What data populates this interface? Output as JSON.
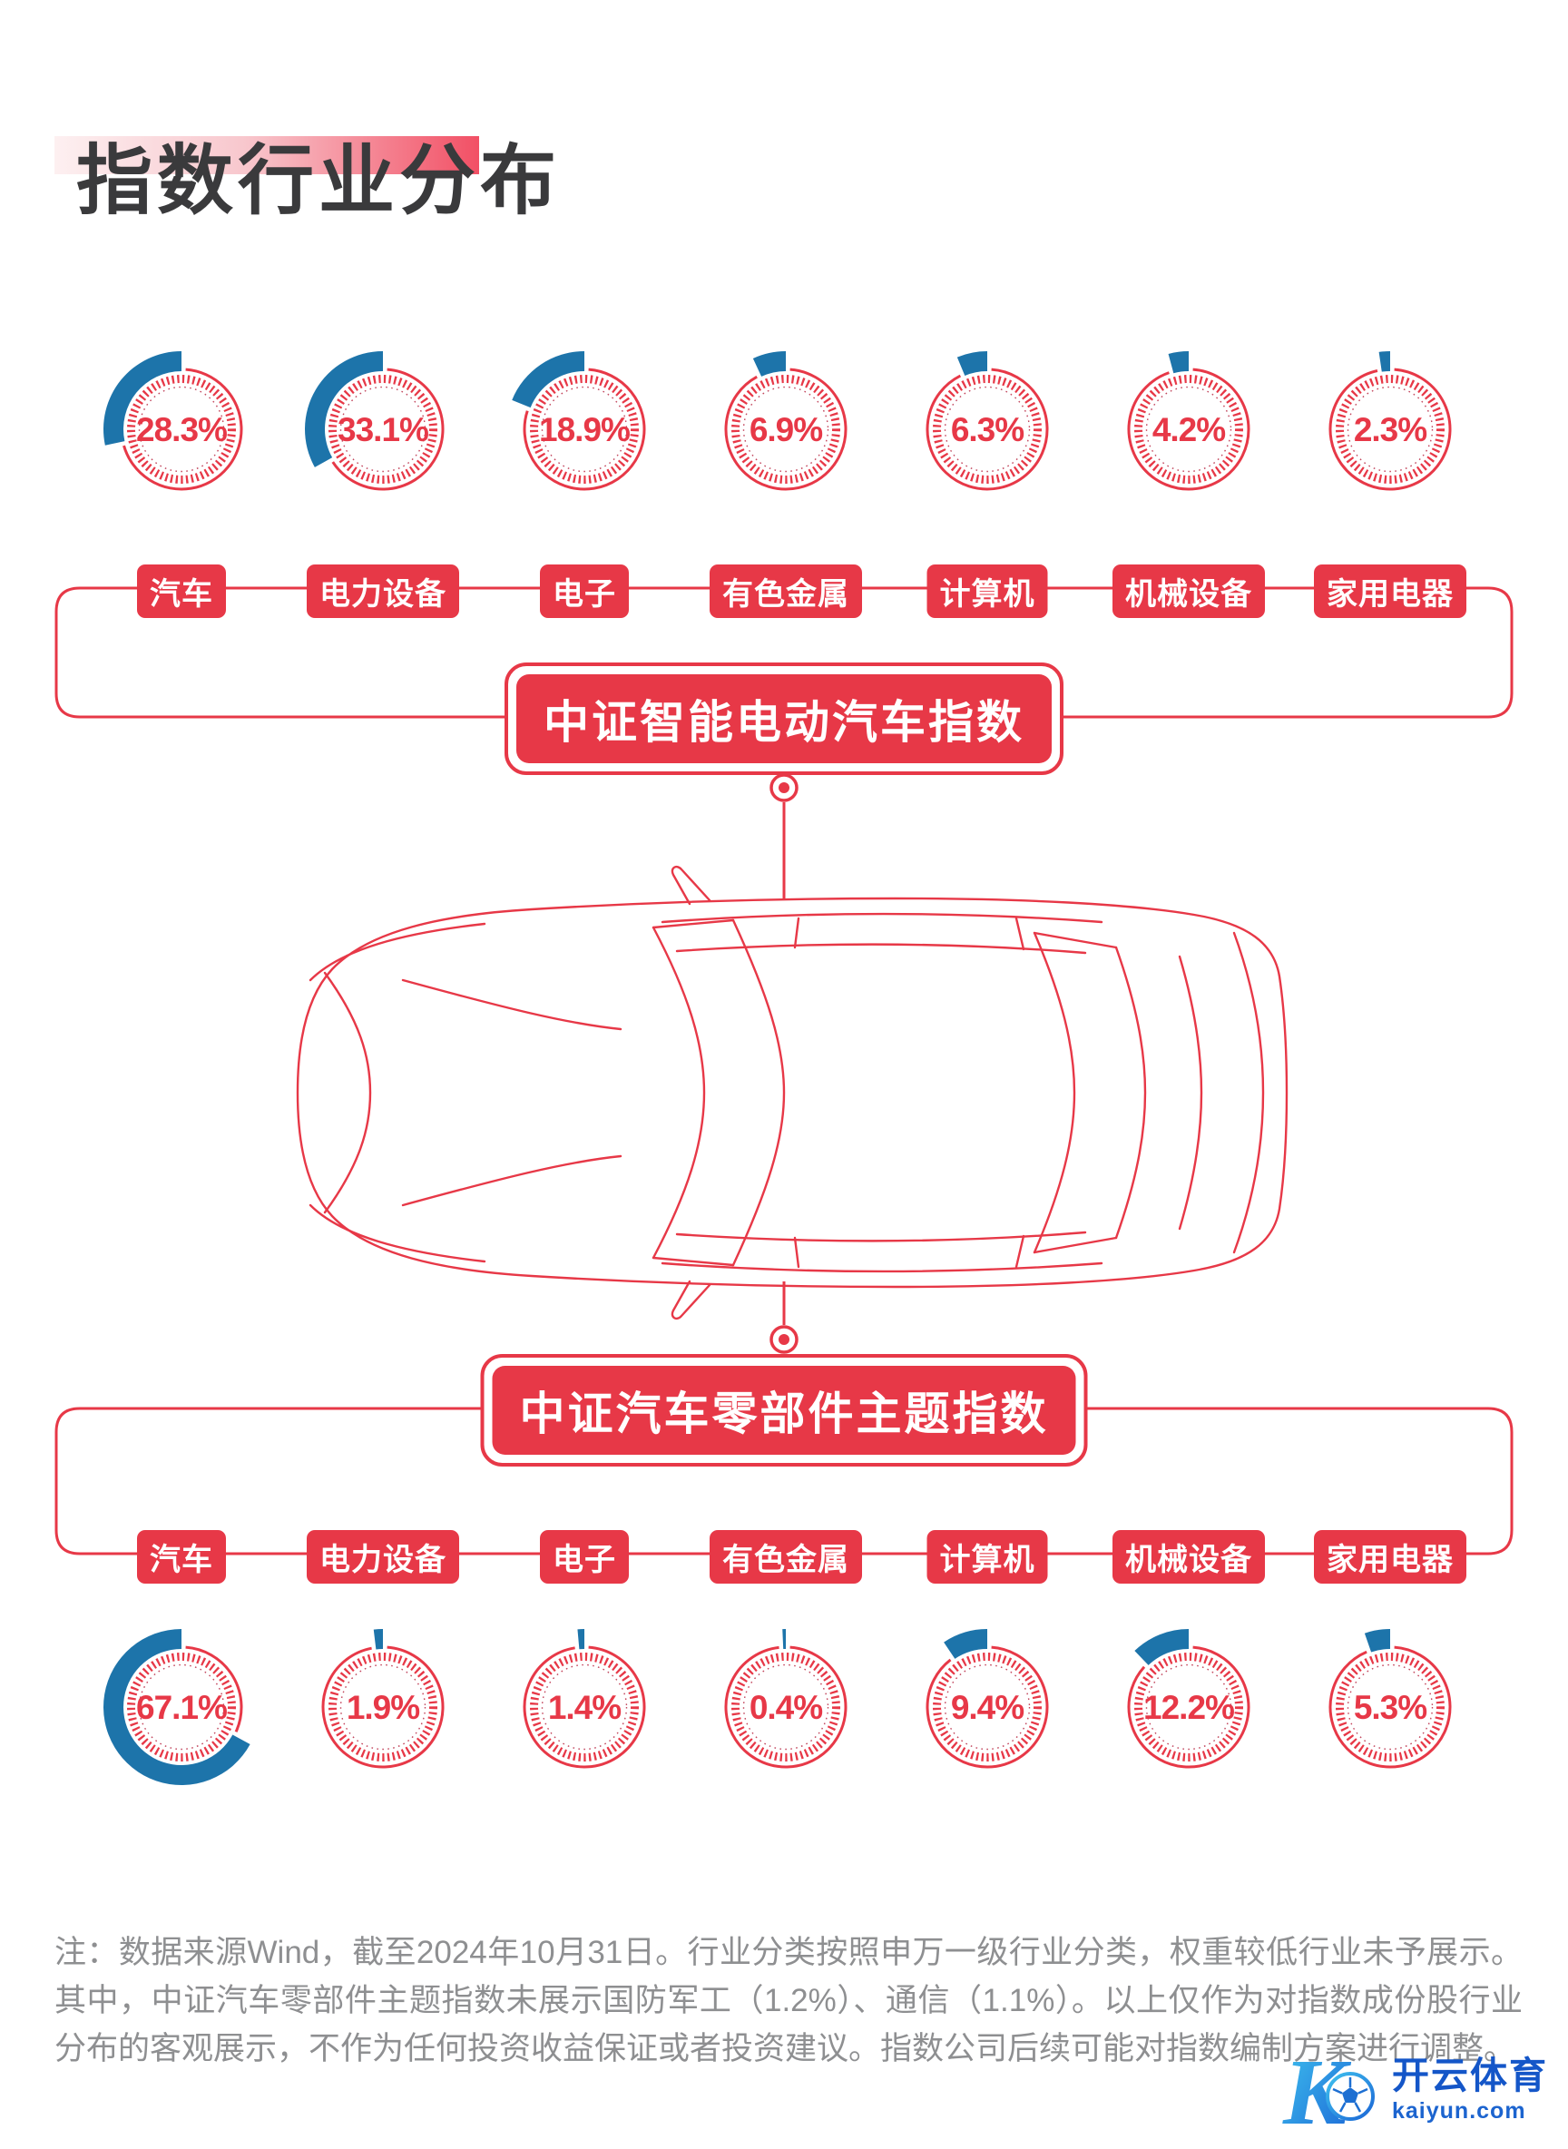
{
  "title": "指数行业分布",
  "chart_data": [
    {
      "type": "pie",
      "title": "中证智能电动汽车指数",
      "unit": "%",
      "categories": [
        "汽车",
        "电力设备",
        "电子",
        "有色金属",
        "计算机",
        "机械设备",
        "家用电器"
      ],
      "values": [
        28.3,
        33.1,
        18.9,
        6.9,
        6.3,
        4.2,
        2.3
      ],
      "labels": [
        "28.3%",
        "33.1%",
        "18.9%",
        "6.9%",
        "6.3%",
        "4.2%",
        "2.3%"
      ],
      "layout_hint": "row of 7 ring gauges; blue arc = weight share, sweeping counterclockwise from 12 o'clock; value shown in center"
    },
    {
      "type": "pie",
      "title": "中证汽车零部件主题指数",
      "unit": "%",
      "categories": [
        "汽车",
        "电力设备",
        "电子",
        "有色金属",
        "计算机",
        "机械设备",
        "家用电器"
      ],
      "values": [
        67.1,
        1.9,
        1.4,
        0.4,
        9.4,
        12.2,
        5.3
      ],
      "labels": [
        "67.1%",
        "1.9%",
        "1.4%",
        "0.4%",
        "9.4%",
        "12.2%",
        "5.3%"
      ],
      "layout_hint": "row of 7 ring gauges below car illustration; blue arc = weight share, counterclockwise from 12 o'clock"
    }
  ],
  "footnote": "注：数据来源Wind，截至2024年10月31日。行业分类按照申万一级行业分类，权重较低行业未予展示。其中，中证汽车零部件主题指数未展示国防军工（1.2%）、通信（1.1%）。以上仅作为对指数成份股行业分布的客观展示，不作为任何投资收益保证或者投资建议。指数公司后续可能对指数编制方案进行调整。",
  "logo": {
    "monogram": "K",
    "brand": "开云体育",
    "domain": "kaiyun.com"
  },
  "colors": {
    "red": "#e73847",
    "blue": "#1d74aa",
    "title_text": "#3a3a3c",
    "footnote_gray": "#8e8f91",
    "logo_blue": "#1456c8",
    "logo_gradient_start": "#3fc1ee",
    "logo_gradient_end": "#1b66d6"
  }
}
